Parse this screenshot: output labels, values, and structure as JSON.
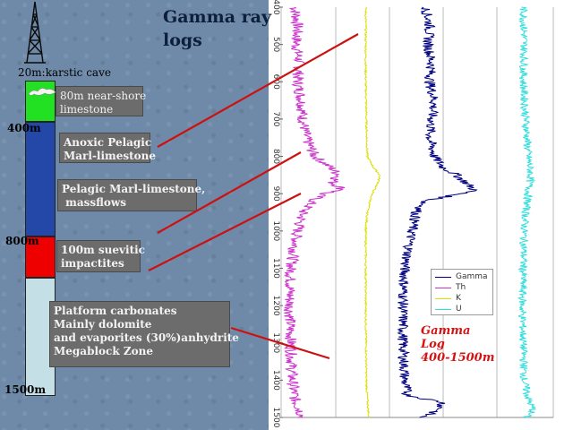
{
  "title": {
    "line1": "Gamma ray",
    "line2": "logs"
  },
  "column": {
    "cave_label": "20m:karstic cave",
    "depth_labels": [
      "400m",
      "800m",
      "1500m"
    ],
    "colors": {
      "green": "#22e022",
      "blue": "#2448a8",
      "red": "#ee0000",
      "pale": "#c4e0e6"
    }
  },
  "annotations": {
    "near_shore": [
      "80m near-shore",
      "limestone"
    ],
    "anoxic": [
      "Anoxic Pelagic",
      "Marl-limestone"
    ],
    "pelagic": [
      "Pelagic Marl-limestone,",
      " massflows"
    ],
    "suevitic": [
      "100m suevitic",
      "impactites"
    ],
    "platform": [
      "Platform carbonates",
      "Mainly dolomite",
      "and evaporites (30%)anhydrite",
      "Megablock Zone"
    ]
  },
  "gamma_note": [
    "Gamma",
    "Log",
    "400-1500m"
  ],
  "chart_data": {
    "type": "line",
    "y_axis": {
      "range": [
        400,
        1500
      ],
      "inverted": true,
      "ticks": [
        400,
        500,
        600,
        700,
        800,
        900,
        1000,
        1100,
        1200,
        1300,
        1400,
        1500
      ]
    },
    "legend": {
      "placement": "center-right",
      "entries": [
        "Gamma",
        "Th",
        "K",
        "U"
      ]
    },
    "series": [
      {
        "name": "Th",
        "color": "#cc33cc",
        "x_range": [
          0,
          1
        ],
        "depth": [
          400,
          450,
          500,
          550,
          600,
          650,
          700,
          750,
          800,
          830,
          850,
          870,
          890,
          900,
          920,
          950,
          1000,
          1100,
          1200,
          1300,
          1400,
          1450,
          1500
        ],
        "values": [
          0.18,
          0.22,
          0.2,
          0.25,
          0.22,
          0.28,
          0.3,
          0.35,
          0.48,
          0.72,
          0.85,
          0.75,
          0.92,
          0.6,
          0.45,
          0.3,
          0.22,
          0.12,
          0.1,
          0.12,
          0.14,
          0.18,
          0.3
        ]
      },
      {
        "name": "K",
        "color": "#dddd00",
        "x_range": [
          0,
          1
        ],
        "depth": [
          400,
          500,
          600,
          700,
          800,
          830,
          850,
          870,
          900,
          950,
          1000,
          1200,
          1400,
          1450,
          1500
        ],
        "values": [
          0.1,
          0.1,
          0.1,
          0.12,
          0.15,
          0.35,
          0.55,
          0.5,
          0.3,
          0.15,
          0.1,
          0.1,
          0.12,
          0.15,
          0.2
        ]
      },
      {
        "name": "Gamma",
        "color": "#000080",
        "x_range": [
          0,
          1
        ],
        "depth": [
          400,
          450,
          500,
          550,
          600,
          650,
          700,
          750,
          800,
          830,
          850,
          870,
          890,
          900,
          920,
          950,
          1000,
          1100,
          1200,
          1300,
          1400,
          1440,
          1460,
          1480,
          1500
        ],
        "values": [
          0.35,
          0.4,
          0.38,
          0.42,
          0.4,
          0.45,
          0.42,
          0.4,
          0.45,
          0.55,
          0.7,
          0.8,
          0.9,
          0.75,
          0.35,
          0.25,
          0.2,
          0.12,
          0.1,
          0.1,
          0.12,
          0.15,
          0.55,
          0.5,
          0.3
        ]
      },
      {
        "name": "U",
        "color": "#33dddd",
        "x_range": [
          0,
          1
        ],
        "depth": [
          400,
          500,
          600,
          700,
          800,
          850,
          900,
          950,
          1000,
          1100,
          1200,
          1300,
          1400,
          1450,
          1480,
          1500
        ],
        "values": [
          0.4,
          0.42,
          0.4,
          0.45,
          0.5,
          0.55,
          0.5,
          0.45,
          0.42,
          0.4,
          0.38,
          0.4,
          0.42,
          0.5,
          0.6,
          0.45
        ]
      }
    ]
  }
}
